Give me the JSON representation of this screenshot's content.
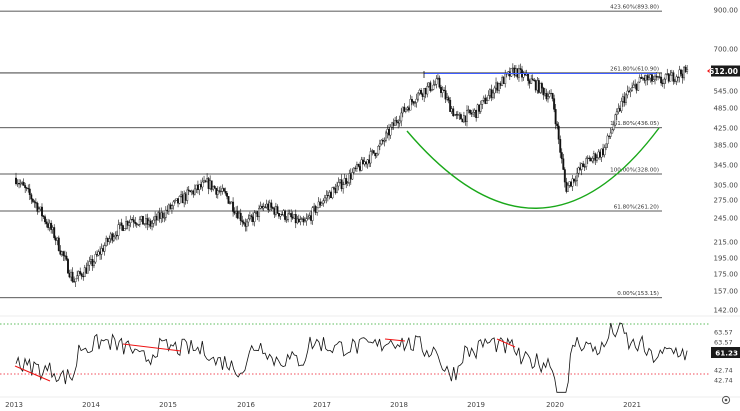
{
  "chart_data": {
    "type": "candlestick",
    "price_axis": {
      "tick_labels": [
        "900.00",
        "700.00",
        "625.00",
        "545.00",
        "485.00",
        "425.00",
        "385.00",
        "345.00",
        "305.00",
        "275.00",
        "245.00",
        "215.00",
        "195.00",
        "175.00",
        "157.00",
        "142.00"
      ],
      "scale": "log",
      "current_price": "612.00"
    },
    "time_axis": {
      "tick_labels": [
        "2013",
        "2014",
        "2015",
        "2016",
        "2017",
        "2018",
        "2019",
        "2020",
        "2021"
      ],
      "range": [
        "2013-01",
        "2021-10"
      ]
    },
    "fibonacci_levels": [
      {
        "label": "423.60%(893.80)",
        "value": 893.8
      },
      {
        "label": "261.80%(610.90)",
        "value": 610.9
      },
      {
        "label": "161.80%(436.05)",
        "value": 436.05
      },
      {
        "label": "100.00%(328.00)",
        "value": 328.0
      },
      {
        "label": "61.80%(261.20)",
        "value": 261.2
      },
      {
        "label": "0.00%(153.15)",
        "value": 153.15
      }
    ],
    "price_series_approx": [
      {
        "date": "2013-01",
        "close": 320
      },
      {
        "date": "2013-04",
        "close": 275
      },
      {
        "date": "2013-07",
        "close": 225
      },
      {
        "date": "2013-10",
        "close": 170
      },
      {
        "date": "2014-01",
        "close": 190
      },
      {
        "date": "2014-04",
        "close": 225
      },
      {
        "date": "2014-07",
        "close": 250
      },
      {
        "date": "2014-10",
        "close": 240
      },
      {
        "date": "2015-01",
        "close": 265
      },
      {
        "date": "2015-04",
        "close": 290
      },
      {
        "date": "2015-07",
        "close": 310
      },
      {
        "date": "2015-10",
        "close": 285
      },
      {
        "date": "2016-01",
        "close": 240
      },
      {
        "date": "2016-04",
        "close": 270
      },
      {
        "date": "2016-07",
        "close": 255
      },
      {
        "date": "2016-10",
        "close": 240
      },
      {
        "date": "2017-01",
        "close": 280
      },
      {
        "date": "2017-04",
        "close": 310
      },
      {
        "date": "2017-07",
        "close": 345
      },
      {
        "date": "2017-10",
        "close": 390
      },
      {
        "date": "2018-01",
        "close": 470
      },
      {
        "date": "2018-04",
        "close": 540
      },
      {
        "date": "2018-07",
        "close": 575
      },
      {
        "date": "2018-10",
        "close": 460
      },
      {
        "date": "2019-01",
        "close": 480
      },
      {
        "date": "2019-04",
        "close": 560
      },
      {
        "date": "2019-07",
        "close": 620
      },
      {
        "date": "2019-10",
        "close": 575
      },
      {
        "date": "2020-01",
        "close": 520
      },
      {
        "date": "2020-03",
        "close": 300
      },
      {
        "date": "2020-06",
        "close": 350
      },
      {
        "date": "2020-09",
        "close": 380
      },
      {
        "date": "2020-12",
        "close": 520
      },
      {
        "date": "2021-03",
        "close": 590
      },
      {
        "date": "2021-06",
        "close": 580
      },
      {
        "date": "2021-09",
        "close": 612
      }
    ],
    "rsi": {
      "tick_labels": [
        "63.57",
        "63.57",
        "61.23",
        "42.74",
        "42.74"
      ],
      "current_value": "61.23"
    }
  }
}
